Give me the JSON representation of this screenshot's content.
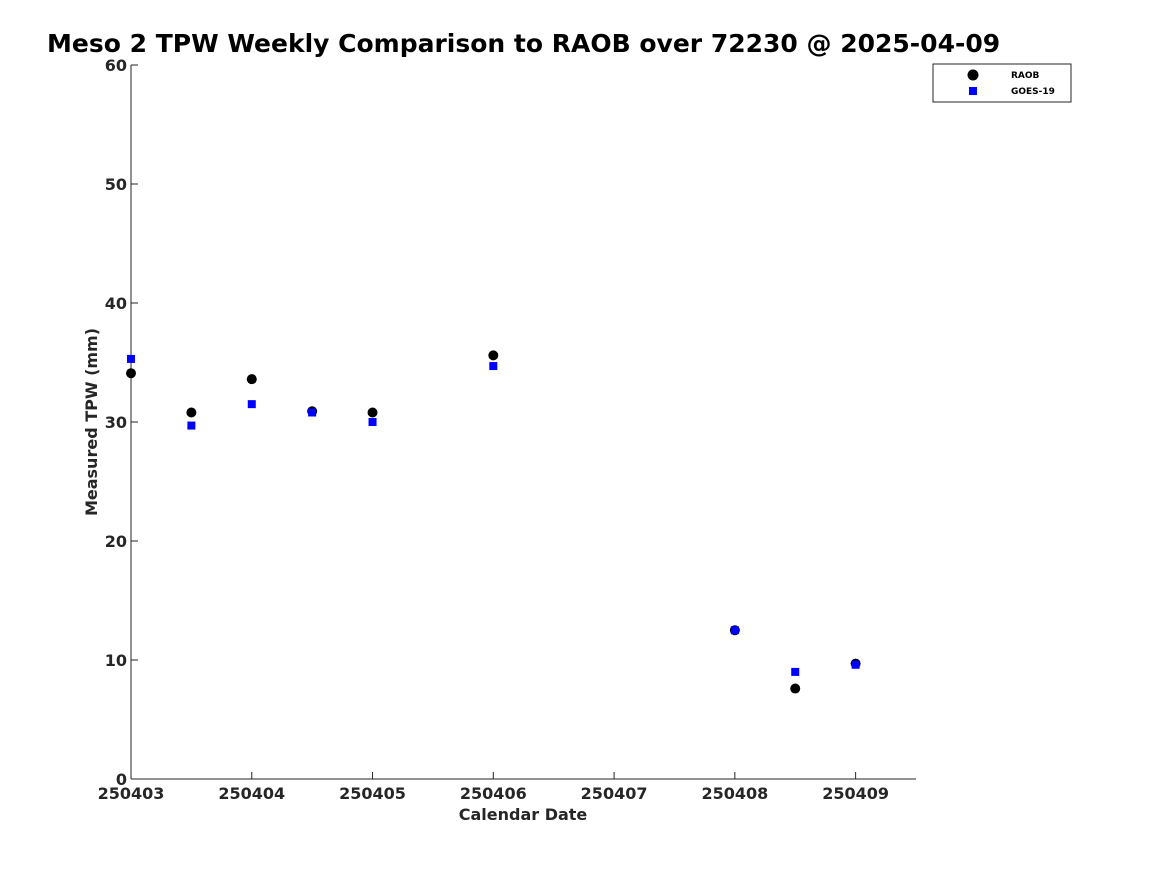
{
  "chart_data": {
    "type": "scatter",
    "title": "Meso 2 TPW Weekly Comparison to RAOB over 72230 @ 2025-04-09",
    "xlabel": "Calendar Date",
    "ylabel": "Measured TPW (mm)",
    "xlim": [
      250403,
      250409.5
    ],
    "ylim": [
      0,
      60
    ],
    "x_ticks": [
      250403,
      250404,
      250405,
      250406,
      250407,
      250408,
      250409
    ],
    "x_tick_labels": [
      "250403",
      "250404",
      "250405",
      "250406",
      "250407",
      "250408",
      "250409"
    ],
    "y_ticks": [
      0,
      10,
      20,
      30,
      40,
      50,
      60
    ],
    "y_tick_labels": [
      "0",
      "10",
      "20",
      "30",
      "40",
      "50",
      "60"
    ],
    "legend_position": "top-right",
    "series": [
      {
        "name": "RAOB",
        "marker": "circle",
        "color": "#000000",
        "x": [
          250403.0,
          250403.5,
          250404.0,
          250404.5,
          250405.0,
          250406.0,
          250408.0,
          250408.5,
          250409.0
        ],
        "y": [
          34.1,
          30.8,
          33.6,
          30.9,
          30.8,
          35.6,
          12.5,
          7.6,
          9.7
        ]
      },
      {
        "name": "GOES-19",
        "marker": "square",
        "color": "#0000ff",
        "x": [
          250403.0,
          250403.5,
          250404.0,
          250404.5,
          250405.0,
          250406.0,
          250408.0,
          250408.5,
          250409.0
        ],
        "y": [
          35.3,
          29.7,
          31.5,
          30.8,
          30.0,
          34.7,
          12.5,
          9.0,
          9.6
        ]
      }
    ]
  }
}
